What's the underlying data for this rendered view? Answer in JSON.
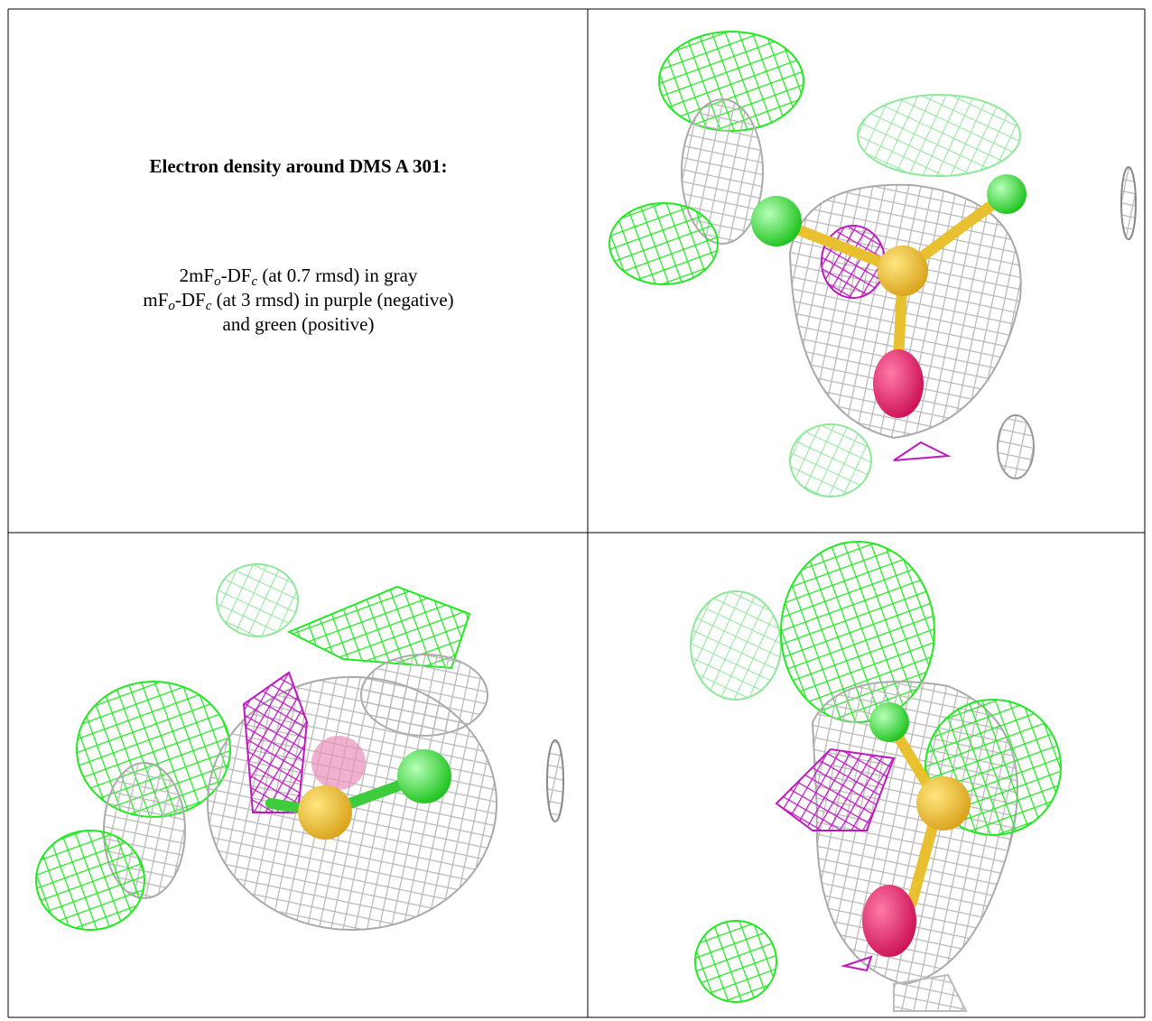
{
  "panel": {
    "title": "Electron density around DMS A 301:",
    "lines": [
      [
        "2mF",
        "o",
        "-DF",
        "c",
        " (at 0.7 rmsd) in gray"
      ],
      [
        "mF",
        "o",
        "-DF",
        "c",
        " (at 3 rmsd) in purple (negative)"
      ],
      [
        "and green (positive)"
      ]
    ]
  }
}
